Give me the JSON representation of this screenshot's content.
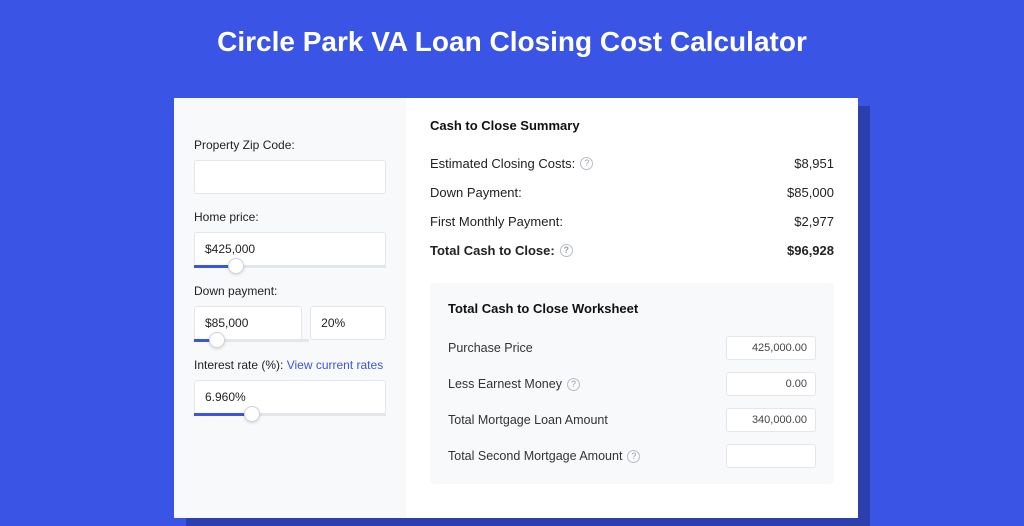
{
  "colors": {
    "page_bg": "#3a55e6",
    "shadow": "#2b3fae",
    "card_bg": "#ffffff",
    "panel_bg": "#f8f9fb",
    "input_border": "#e4e6ea",
    "text_primary": "#222222",
    "text_secondary": "#333333",
    "link": "#3a55e6",
    "slider_track": "#e4e6ea",
    "slider_fill": "#3a55e6",
    "help_border": "#b8bcc5",
    "help_text": "#9aa0ab"
  },
  "header": {
    "title": "Circle Park VA Loan Closing Cost Calculator",
    "title_fontsize": 28,
    "title_color": "#ffffff"
  },
  "inputs": {
    "zip": {
      "label": "Property Zip Code:",
      "value": ""
    },
    "home_price": {
      "label": "Home price:",
      "value": "$425,000",
      "slider_percent": 22
    },
    "down_payment": {
      "label": "Down payment:",
      "amount": "$85,000",
      "percent": "20%",
      "slider_percent": 20
    },
    "interest": {
      "label_prefix": "Interest rate (%): ",
      "link_text": "View current rates",
      "value": "6.960%",
      "slider_percent": 30
    }
  },
  "summary": {
    "title": "Cash to Close Summary",
    "rows": [
      {
        "label": "Estimated Closing Costs:",
        "help": true,
        "value": "$8,951",
        "bold": false
      },
      {
        "label": "Down Payment:",
        "help": false,
        "value": "$85,000",
        "bold": false
      },
      {
        "label": "First Monthly Payment:",
        "help": false,
        "value": "$2,977",
        "bold": false
      },
      {
        "label": "Total Cash to Close:",
        "help": true,
        "value": "$96,928",
        "bold": true
      }
    ]
  },
  "worksheet": {
    "title": "Total Cash to Close Worksheet",
    "rows": [
      {
        "label": "Purchase Price",
        "help": false,
        "value": "425,000.00"
      },
      {
        "label": "Less Earnest Money",
        "help": true,
        "value": "0.00"
      },
      {
        "label": "Total Mortgage Loan Amount",
        "help": false,
        "value": "340,000.00"
      },
      {
        "label": "Total Second Mortgage Amount",
        "help": true,
        "value": ""
      }
    ]
  }
}
